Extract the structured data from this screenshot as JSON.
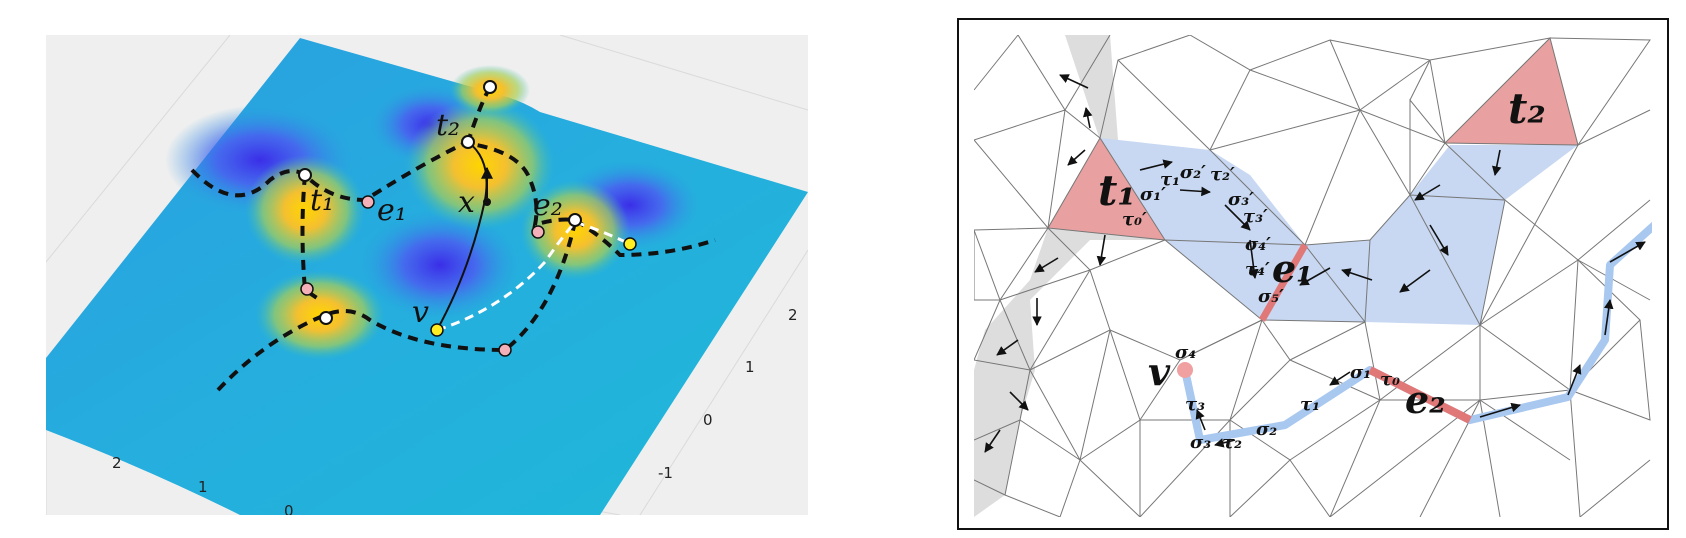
{
  "left_panel": {
    "labels": {
      "t1": "t₁",
      "t2": "t₂",
      "e1": "e₁",
      "e2": "e₂",
      "x": "x",
      "v": "v"
    },
    "ticks_right": [
      "2",
      "1",
      "0",
      "-1"
    ],
    "ticks_bottom": [
      "2",
      "1",
      "0"
    ]
  },
  "right_panel": {
    "labels": {
      "t1": "t₁",
      "t2": "t₂",
      "e1": "e₁",
      "e2": "e₂",
      "v": "v",
      "sigma0p": "τ₀′",
      "sigma1p": "σ₁′",
      "tau1p": "τ₁′",
      "sigma2p": "σ₂′",
      "tau2p": "τ₂′",
      "sigma3p": "σ₃′",
      "tau3p": "τ₃′",
      "sigma4p": "σ₄′",
      "tau4p": "τ₄′",
      "sigma5p": "σ₅′",
      "sigma4": "σ₄",
      "tau3": "τ₃",
      "sigma3": "σ₃",
      "tau2": "τ₂",
      "sigma2": "σ₂",
      "tau1": "τ₁",
      "sigma1": "σ₁",
      "tau0": "τ₀"
    },
    "colors": {
      "red_triangle": "#e8a0a0",
      "blue_region": "#c8d8f2",
      "gray_region": "#dddddd",
      "path_blue": "#a8c8f0",
      "edge_red": "#e07878",
      "vertex_red": "#f0a0a0"
    }
  }
}
